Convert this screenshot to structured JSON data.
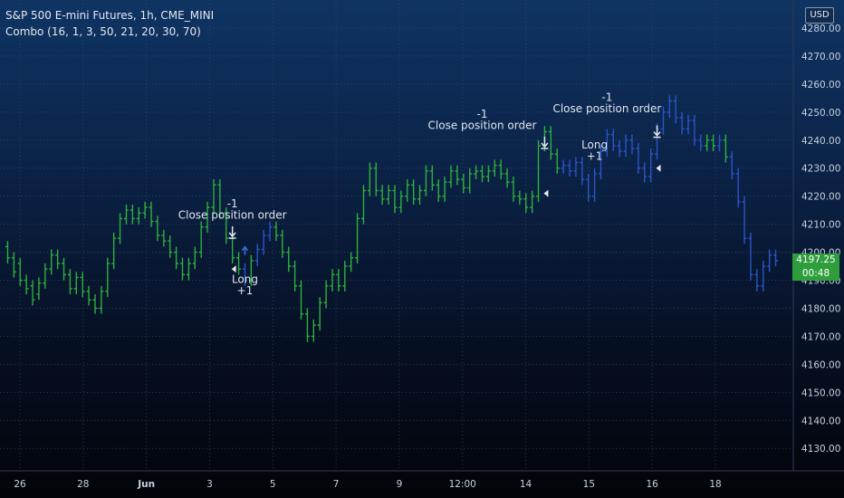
{
  "legend": {
    "symbol": "S&P 500 E-mini Futures, 1h, CME_MINI",
    "indicator": "Combo (16, 1, 3, 50, 21, 20, 30, 70)"
  },
  "currency": "USD",
  "last_price": {
    "price": "4197.25",
    "countdown": "00:48"
  },
  "colors": {
    "up": "#2eb03a",
    "down": "#2a55c7",
    "axis_text": "#c9d1de",
    "price_tag": "#2e9e3c"
  },
  "chart_data": {
    "type": "bar",
    "ylim": [
      4122,
      4290
    ],
    "y_ticks": [
      "4130.00",
      "4140.00",
      "4150.00",
      "4160.00",
      "4170.00",
      "4180.00",
      "4190.00",
      "4200.00",
      "4210.00",
      "4220.00",
      "4230.00",
      "4240.00",
      "4250.00",
      "4260.00",
      "4270.00",
      "4280.00"
    ],
    "x_ticks": [
      "26",
      "28",
      "Jun",
      "3",
      "5",
      "7",
      "9",
      "12:00",
      "14",
      "15",
      "16",
      "18"
    ],
    "grid": true,
    "series": [
      {
        "points": [
          [
            4202,
            4198
          ],
          [
            4198,
            4193
          ],
          [
            4196,
            4190
          ],
          [
            4190,
            4187
          ],
          [
            4188,
            4183
          ],
          [
            4185,
            4189
          ],
          [
            4189,
            4194
          ],
          [
            4194,
            4199
          ],
          [
            4199,
            4196
          ],
          [
            4196,
            4192
          ],
          [
            4192,
            4187
          ],
          [
            4187,
            4191
          ],
          [
            4191,
            4186
          ],
          [
            4186,
            4183
          ],
          [
            4183,
            4180
          ],
          [
            4180,
            4186
          ],
          [
            4186,
            4196
          ],
          [
            4196,
            4205
          ],
          [
            4205,
            4212
          ],
          [
            4212,
            4215
          ],
          [
            4215,
            4212
          ],
          [
            4212,
            4214
          ],
          [
            4214,
            4216
          ],
          [
            4216,
            4211
          ],
          [
            4211,
            4206
          ],
          [
            4206,
            4204
          ],
          [
            4204,
            4200
          ],
          [
            4200,
            4196
          ],
          [
            4196,
            4192
          ],
          [
            4192,
            4196
          ],
          [
            4196,
            4200
          ],
          [
            4200,
            4209
          ],
          [
            4209,
            4216
          ],
          [
            4216,
            4224
          ],
          [
            4224,
            4214
          ],
          [
            4214,
            4205
          ],
          [
            4205,
            4198
          ],
          [
            4198,
            4194
          ],
          [
            4194,
            4190
          ],
          [
            4190,
            4197
          ],
          [
            4197,
            4201
          ],
          [
            4201,
            4206
          ],
          [
            4206,
            4209
          ],
          [
            4209,
            4206
          ],
          [
            4206,
            4200
          ],
          [
            4200,
            4195
          ],
          [
            4195,
            4188
          ],
          [
            4188,
            4178
          ],
          [
            4178,
            4170
          ],
          [
            4170,
            4174
          ],
          [
            4174,
            4182
          ],
          [
            4182,
            4188
          ],
          [
            4188,
            4192
          ],
          [
            4192,
            4188
          ],
          [
            4188,
            4195
          ],
          [
            4195,
            4198
          ],
          [
            4198,
            4212
          ],
          [
            4212,
            4222
          ],
          [
            4222,
            4230
          ],
          [
            4230,
            4222
          ],
          [
            4222,
            4219
          ],
          [
            4219,
            4222
          ],
          [
            4222,
            4216
          ],
          [
            4216,
            4220
          ],
          [
            4220,
            4224
          ],
          [
            4224,
            4219
          ],
          [
            4219,
            4222
          ],
          [
            4222,
            4229
          ],
          [
            4229,
            4224
          ],
          [
            4224,
            4220
          ],
          [
            4220,
            4225
          ],
          [
            4225,
            4229
          ],
          [
            4229,
            4226
          ],
          [
            4226,
            4223
          ],
          [
            4223,
            4228
          ],
          [
            4228,
            4229
          ],
          [
            4229,
            4227
          ],
          [
            4227,
            4229
          ],
          [
            4229,
            4231
          ],
          [
            4231,
            4228
          ],
          [
            4228,
            4225
          ],
          [
            4225,
            4220
          ],
          [
            4220,
            4219
          ],
          [
            4219,
            4216
          ],
          [
            4216,
            4220
          ],
          [
            4220,
            4238
          ],
          [
            4238,
            4243
          ],
          [
            4243,
            4235
          ],
          [
            4235,
            4230
          ],
          [
            4230,
            4231
          ],
          [
            4231,
            4229
          ],
          [
            4229,
            4232
          ],
          [
            4232,
            4226
          ],
          [
            4226,
            4220
          ],
          [
            4220,
            4228
          ],
          [
            4228,
            4236
          ],
          [
            4236,
            4242
          ],
          [
            4242,
            4238
          ],
          [
            4238,
            4236
          ],
          [
            4236,
            4240
          ],
          [
            4240,
            4237
          ],
          [
            4237,
            4230
          ],
          [
            4230,
            4227
          ],
          [
            4227,
            4235
          ],
          [
            4235,
            4244
          ],
          [
            4244,
            4250
          ],
          [
            4250,
            4254
          ],
          [
            4254,
            4248
          ],
          [
            4248,
            4244
          ],
          [
            4244,
            4247
          ],
          [
            4247,
            4240
          ],
          [
            4240,
            4238
          ],
          [
            4238,
            4240
          ],
          [
            4240,
            4238
          ],
          [
            4238,
            4240
          ],
          [
            4240,
            4234
          ],
          [
            4234,
            4228
          ],
          [
            4228,
            4218
          ],
          [
            4218,
            4205
          ],
          [
            4205,
            4192
          ],
          [
            4192,
            4188
          ],
          [
            4188,
            4195
          ],
          [
            4195,
            4199
          ],
          [
            4199,
            4197
          ]
        ],
        "colors": "GGGGGGGGGGGGGGGGGGGGGGGGGGGGGGGGGGGGGGBGBBBGGGGGGGGGGGGGGGGGGGGGGGGGGGGGGGGGGGGGGGGGGGGGGBBBBBBBBBBBBBBBBBBBBBBBGGBGBBBBBBBBBBBBBBBG"
      }
    ],
    "annotations": [
      {
        "text": "-1",
        "at_x": 36,
        "at_y": 4216
      },
      {
        "text": "Close position order",
        "at_x": 36,
        "at_y": 4212
      },
      {
        "text": "Long",
        "at_x": 38,
        "at_y": 4189
      },
      {
        "text": "+1",
        "at_x": 38,
        "at_y": 4185
      },
      {
        "text": "-1",
        "at_x": 76,
        "at_y": 4248
      },
      {
        "text": "Close position order",
        "at_x": 76,
        "at_y": 4244
      },
      {
        "text": "-1",
        "at_x": 96,
        "at_y": 4254
      },
      {
        "text": "Close position order",
        "at_x": 96,
        "at_y": 4250
      },
      {
        "text": "Long",
        "at_x": 94,
        "at_y": 4237
      },
      {
        "text": "+1",
        "at_x": 94,
        "at_y": 4233
      }
    ]
  }
}
